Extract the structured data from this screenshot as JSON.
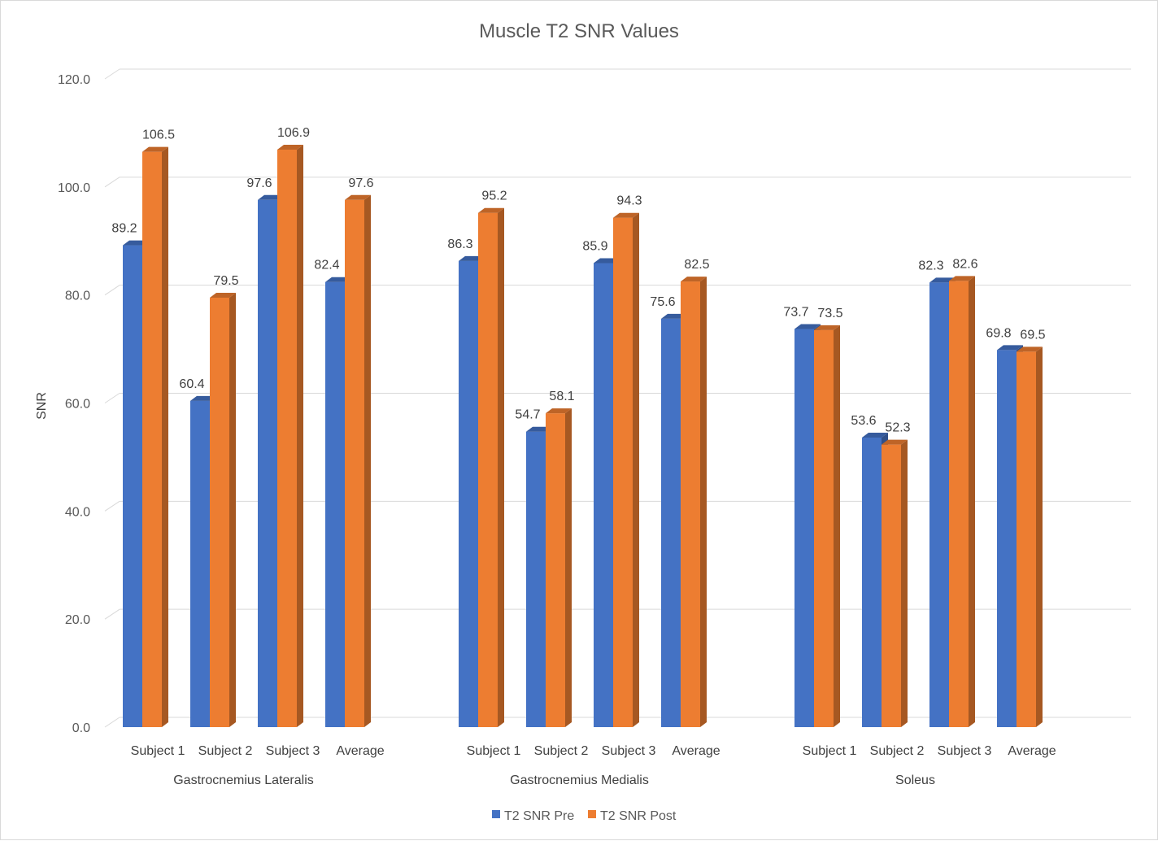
{
  "chart_data": {
    "type": "bar",
    "title": "Muscle T2 SNR Values",
    "xlabel": "",
    "ylabel": "SNR",
    "ylim": [
      0,
      120
    ],
    "yticks": [
      "0.0",
      "20.0",
      "40.0",
      "60.0",
      "80.0",
      "100.0",
      "120.0"
    ],
    "grid": true,
    "legend_position": "bottom",
    "three_d": true,
    "groups": [
      {
        "name": "Gastrocnemius Lateralis",
        "categories": [
          "Subject 1",
          "Subject 2",
          "Subject 3",
          "Average"
        ]
      },
      {
        "name": "Gastrocnemius Medialis",
        "categories": [
          "Subject 1",
          "Subject 2",
          "Subject 3",
          "Average"
        ]
      },
      {
        "name": "Soleus",
        "categories": [
          "Subject 1",
          "Subject 2",
          "Subject 3",
          "Average"
        ]
      }
    ],
    "series": [
      {
        "name": "T2 SNR Pre",
        "color": "#4472c4",
        "values": [
          89.2,
          60.4,
          97.6,
          82.4,
          86.3,
          54.7,
          85.9,
          75.6,
          73.7,
          53.6,
          82.3,
          69.8
        ]
      },
      {
        "name": "T2 SNR Post",
        "color": "#ed7d31",
        "values": [
          106.5,
          79.5,
          106.9,
          97.6,
          95.2,
          58.1,
          94.3,
          82.5,
          73.5,
          52.3,
          82.6,
          69.5
        ]
      }
    ],
    "data_labels": [
      [
        "89.2",
        "60.4",
        "97.6",
        "82.4",
        "86.3",
        "54.7",
        "85.9",
        "75.6",
        "73.7",
        "53.6",
        "82.3",
        "69.8"
      ],
      [
        "106.5",
        "79.5",
        "106.9",
        "97.6",
        "95.2",
        "58.1",
        "94.3",
        "82.5",
        "73.5",
        "52.3",
        "82.6",
        "69.5"
      ]
    ]
  }
}
